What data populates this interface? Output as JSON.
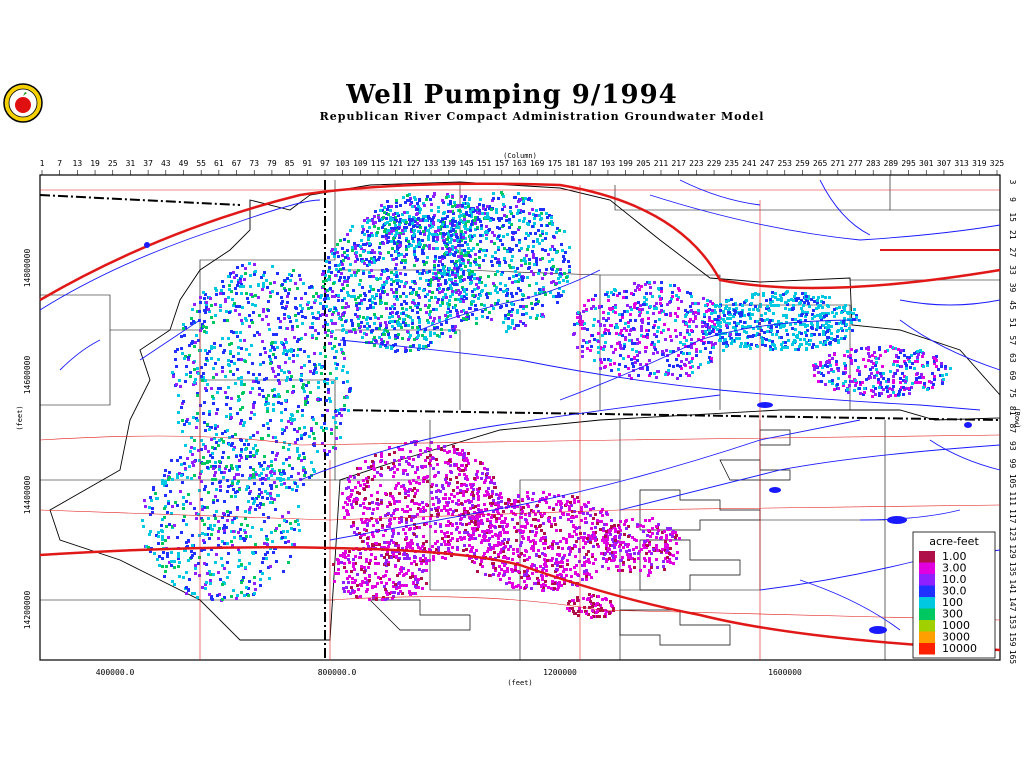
{
  "title": "Well Pumping 9/1994",
  "subtitle": "Republican River Compact Administration Groundwater Model",
  "axes": {
    "column_label": "(Column)",
    "row_label": "(Row)",
    "x_label": "(feet)",
    "y_label": "(feet)",
    "column_ticks": [
      "1",
      "7",
      "13",
      "19",
      "25",
      "31",
      "37",
      "43",
      "49",
      "55",
      "61",
      "67",
      "73",
      "79",
      "85",
      "91",
      "97",
      "103",
      "109",
      "115",
      "121",
      "127",
      "133",
      "139",
      "145",
      "151",
      "157",
      "163",
      "169",
      "175",
      "181",
      "187",
      "193",
      "199",
      "205",
      "211",
      "217",
      "223",
      "229",
      "235",
      "241",
      "247",
      "253",
      "259",
      "265",
      "271",
      "277",
      "283",
      "289",
      "295",
      "301",
      "307",
      "313",
      "319",
      "325"
    ],
    "row_ticks": [
      "3",
      "9",
      "15",
      "21",
      "27",
      "33",
      "39",
      "45",
      "51",
      "57",
      "63",
      "69",
      "75",
      "81",
      "87",
      "93",
      "99",
      "105",
      "111",
      "117",
      "123",
      "129",
      "135",
      "141",
      "147",
      "153",
      "159",
      "165"
    ],
    "x_ticks": [
      "400000.0",
      "800000.0",
      "1200000",
      "1600000"
    ],
    "y_ticks": [
      "14800000",
      "14600000",
      "14400000",
      "14200000"
    ]
  },
  "legend": {
    "title": "acre-feet",
    "entries": [
      {
        "label": "1.00",
        "color": "#b0104a"
      },
      {
        "label": "3.00",
        "color": "#e000e0"
      },
      {
        "label": "10.0",
        "color": "#9020ff"
      },
      {
        "label": "30.0",
        "color": "#2030ff"
      },
      {
        "label": "100",
        "color": "#00c8e0"
      },
      {
        "label": "300",
        "color": "#00c860"
      },
      {
        "label": "1000",
        "color": "#a0d000"
      },
      {
        "label": "3000",
        "color": "#ffa000"
      },
      {
        "label": "10000",
        "color": "#ff2000"
      }
    ]
  },
  "colors": {
    "rivers": "#1a1aff",
    "roads": "#e01818",
    "boundaries": "#000000"
  }
}
